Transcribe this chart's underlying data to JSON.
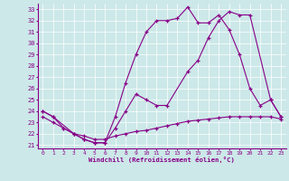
{
  "title": "Windchill (Refroidissement éolien,°C)",
  "background_color": "#cce8e8",
  "line_color": "#880088",
  "xlim": [
    -0.5,
    23.5
  ],
  "ylim": [
    20.7,
    33.5
  ],
  "xticks": [
    0,
    1,
    2,
    3,
    4,
    5,
    6,
    7,
    8,
    9,
    10,
    11,
    12,
    13,
    14,
    15,
    16,
    17,
    18,
    19,
    20,
    21,
    22,
    23
  ],
  "yticks": [
    21,
    22,
    23,
    24,
    25,
    26,
    27,
    28,
    29,
    30,
    31,
    32,
    33
  ],
  "series1_x": [
    0,
    1,
    2,
    3,
    4,
    5,
    6,
    7,
    8,
    9,
    10,
    11,
    12,
    13,
    14,
    15,
    16,
    17,
    18,
    19,
    20,
    21,
    22,
    23
  ],
  "series1_y": [
    24,
    23.5,
    22.5,
    22,
    21.5,
    21.2,
    21.2,
    23.5,
    26.5,
    29,
    31,
    32,
    32,
    32.2,
    33.2,
    31.8,
    31.8,
    32.5,
    31.2,
    29.0,
    26.0,
    24.5,
    25.0,
    23.5
  ],
  "series2_x": [
    0,
    1,
    3,
    4,
    5,
    6,
    7,
    8,
    9,
    10,
    11,
    12,
    14,
    15,
    16,
    17,
    18,
    19,
    20,
    22,
    23
  ],
  "series2_y": [
    24,
    23.5,
    22,
    21.5,
    21.2,
    21.2,
    22.5,
    24,
    25.5,
    25,
    24.5,
    24.5,
    27.5,
    28.5,
    30.5,
    32.0,
    32.8,
    32.5,
    32.5,
    25.0,
    23.5
  ],
  "series3_x": [
    0,
    1,
    2,
    3,
    4,
    5,
    6,
    7,
    8,
    9,
    10,
    11,
    12,
    13,
    14,
    15,
    16,
    17,
    18,
    19,
    20,
    21,
    22,
    23
  ],
  "series3_y": [
    23.5,
    23,
    22.5,
    22,
    21.8,
    21.5,
    21.5,
    21.8,
    22,
    22.2,
    22.3,
    22.5,
    22.7,
    22.9,
    23.1,
    23.2,
    23.3,
    23.4,
    23.5,
    23.5,
    23.5,
    23.5,
    23.5,
    23.3
  ]
}
